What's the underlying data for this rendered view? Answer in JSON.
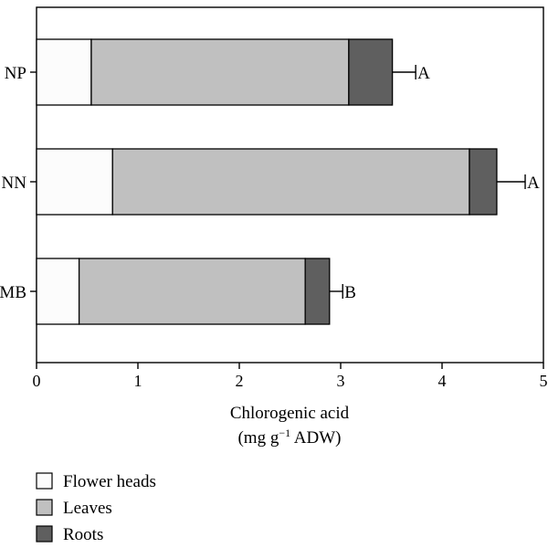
{
  "chart_data": {
    "type": "bar",
    "orientation": "horizontal",
    "stacked": true,
    "categories": [
      "NP",
      "NN",
      "MB"
    ],
    "series": [
      {
        "name": "Flower heads",
        "color": "#fcfcfc",
        "values": [
          0.54,
          0.75,
          0.42
        ]
      },
      {
        "name": "Leaves",
        "color": "#c0c0c0",
        "values": [
          2.54,
          3.52,
          2.23
        ]
      },
      {
        "name": "Roots",
        "color": "#5f5f5f",
        "values": [
          0.43,
          0.27,
          0.24
        ]
      }
    ],
    "totals": [
      3.51,
      4.54,
      2.89
    ],
    "error": [
      0.23,
      0.28,
      0.13
    ],
    "significance": [
      "A",
      "A",
      "B"
    ],
    "xlim": [
      0,
      5
    ],
    "xticks": [
      "0",
      "1",
      "2",
      "3",
      "4",
      "5"
    ],
    "xlabel_line1": "Chlorogenic acid",
    "xlabel_line2_prefix": "(mg g",
    "xlabel_line2_sup": "−1",
    "xlabel_line2_suffix": " ADW)",
    "ylabel": "",
    "title": "",
    "grid": false,
    "legend_position": "bottom-left"
  }
}
